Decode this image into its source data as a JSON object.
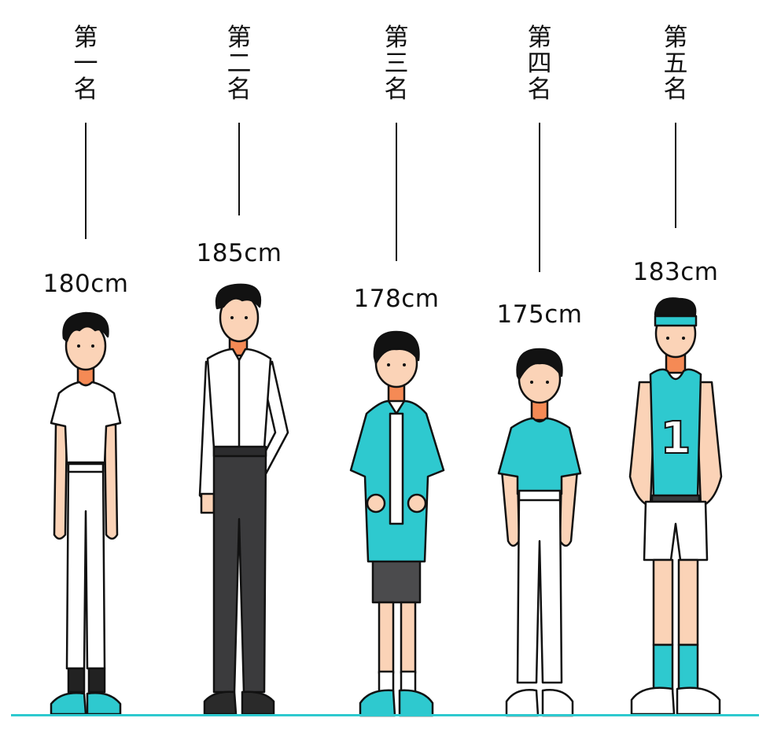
{
  "people": [
    {
      "rank_chars": [
        "第",
        "一",
        "名"
      ],
      "height": "180cm",
      "height_cm": 180
    },
    {
      "rank_chars": [
        "第",
        "二",
        "名"
      ],
      "height": "185cm",
      "height_cm": 185
    },
    {
      "rank_chars": [
        "第",
        "三",
        "名"
      ],
      "height": "178cm",
      "height_cm": 178
    },
    {
      "rank_chars": [
        "第",
        "四",
        "名"
      ],
      "height": "175cm",
      "height_cm": 175
    },
    {
      "rank_chars": [
        "第",
        "五",
        "名"
      ],
      "height": "183cm",
      "height_cm": 183,
      "jersey_number": "1"
    }
  ],
  "colors": {
    "accent": "#2ec9cf",
    "skin": "#fbd3b7",
    "skin_shadow": "#f58a55",
    "hair": "#121212",
    "outline": "#111111",
    "white_cloth": "#ffffff",
    "dark_pants": "#3b3b3d",
    "shorts_dark": "#4b4b4d"
  }
}
